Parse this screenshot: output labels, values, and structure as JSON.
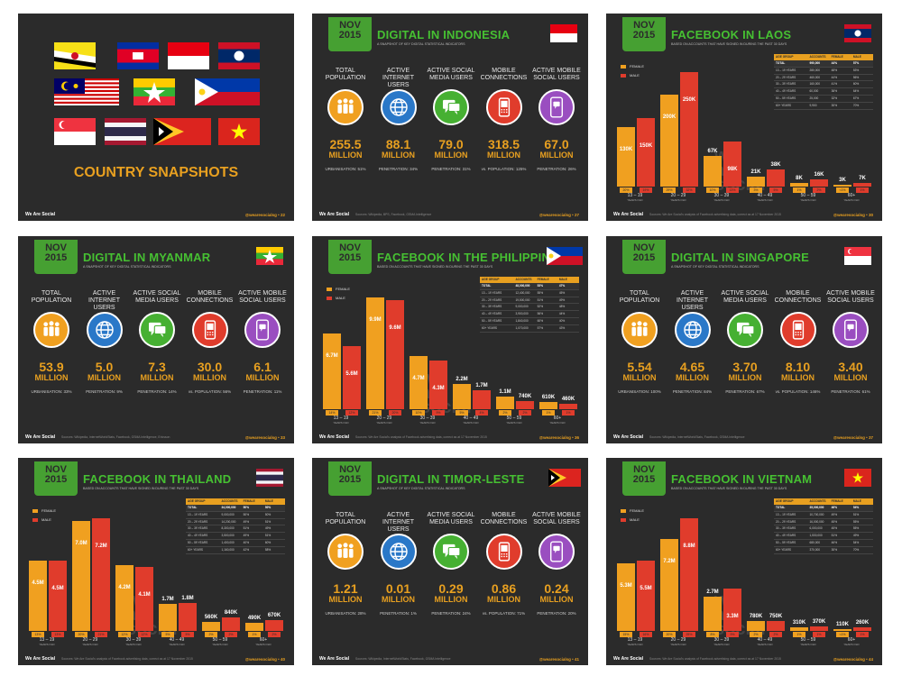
{
  "common": {
    "badge_month": "NOV",
    "badge_year": "2015",
    "footer_left": "We Are Social",
    "footer_right": "@wearesocialsg",
    "digital_subtitle": "A SNAPSHOT OF KEY DIGITAL STATISTICAL INDICATORS",
    "fb_subtitle": "BASED ON ACCOUNTS THAT HAVE SIGNED IN DURING THE PAST 30 DAYS",
    "labels": {
      "total_population": "TOTAL POPULATION",
      "active_internet": "ACTIVE INTERNET USERS",
      "active_social": "ACTIVE SOCIAL MEDIA USERS",
      "mobile_connections": "MOBILE CONNECTIONS",
      "active_mobile_social": "ACTIVE MOBILE SOCIAL USERS"
    },
    "unit": "MILLION",
    "legend_female": "FEMALE",
    "legend_male": "MALE",
    "ages": [
      "13 – 19",
      "20 – 29",
      "30 – 39",
      "40 – 49",
      "50 – 59",
      "60+"
    ],
    "years_old": "YEARS OLD",
    "table_headers": [
      "AGE GROUP",
      "ACCOUNTS",
      "FEMALE",
      "MALE"
    ],
    "watermark": "we are social",
    "colors": {
      "background": "#2b2b2b",
      "badge": "#46a032",
      "accent": "#e8a020",
      "female": "#f0a020",
      "male": "#e03c2c",
      "population": "#f0a020",
      "internet": "#2a78c8",
      "social": "#46b032",
      "mobile": "#e03c2c",
      "mobile_social": "#9a4ec0"
    }
  },
  "cover": {
    "title": "COUNTRY SNAPSHOTS",
    "page": "22",
    "flags": [
      "brunei",
      "cambodia",
      "indonesia",
      "laos",
      "malaysia",
      "myanmar",
      "philippines",
      "singapore",
      "thailand",
      "timor-leste",
      "vietnam"
    ]
  },
  "indonesia": {
    "title": "DIGITAL IN INDONESIA",
    "page": "27",
    "source": "Sources: Wikipedia, BPS, Facebook, GSMA Intelligence",
    "values": [
      "255.5",
      "88.1",
      "79.0",
      "318.5",
      "67.0"
    ],
    "notes": [
      "URBANISATION: 51%",
      "PENETRATION: 34%",
      "PENETRATION: 31%",
      "vs. POPULATION: 125%",
      "PENETRATION: 26%"
    ]
  },
  "laos": {
    "title": "FACEBOOK IN LAOS",
    "page": "30",
    "source": "Sources: We Are Social's analysis of Facebook advertising data, correct as at 17 November 2015",
    "female_labels": [
      "130K",
      "200K",
      "67K",
      "21K",
      "8K",
      "3K"
    ],
    "male_labels": [
      "150K",
      "250K",
      "98K",
      "38K",
      "16K",
      "7K"
    ],
    "female_pct": [
      "20%",
      "29%",
      "10%",
      "3%",
      "1%",
      "<1%"
    ],
    "male_pct": [
      "19%",
      "32%",
      "13%",
      "5%",
      "2%",
      "1%"
    ],
    "table": [
      [
        "TOTAL",
        "990,000",
        "44%",
        "57%"
      ],
      [
        "13 – 19 YEARS",
        "280,000",
        "48%",
        "53%"
      ],
      [
        "20 – 29 YEARS",
        "460,000",
        "44%",
        "56%"
      ],
      [
        "30 – 39 YEARS",
        "160,000",
        "41%",
        "60%"
      ],
      [
        "40 – 49 YEARS",
        "60,000",
        "36%",
        "64%"
      ],
      [
        "50 – 59 YEARS",
        "25,000",
        "32%",
        "67%"
      ],
      [
        "60+ YEARS",
        "9,900",
        "30%",
        "70%"
      ]
    ],
    "chart_data": {
      "type": "bar",
      "categories": [
        "13 – 19",
        "20 – 29",
        "30 – 39",
        "40 – 49",
        "50 – 59",
        "60+"
      ],
      "series": [
        {
          "name": "FEMALE",
          "values": [
            130,
            200,
            67,
            21,
            8,
            3
          ]
        },
        {
          "name": "MALE",
          "values": [
            150,
            250,
            98,
            38,
            16,
            7
          ]
        }
      ],
      "ylim": [
        0,
        260
      ]
    }
  },
  "myanmar": {
    "title": "DIGITAL IN MYANMAR",
    "page": "33",
    "source": "Sources: Wikipedia, InternetWorldStats, Facebook, GSMA Intelligence, Ericsson",
    "values": [
      "53.9",
      "5.0",
      "7.3",
      "30.0",
      "6.1"
    ],
    "notes": [
      "URBANISATION: 33%",
      "PENETRATION: 9%",
      "PENETRATION: 14%",
      "vs. POPULATION: 56%",
      "PENETRATION: 11%"
    ]
  },
  "philippines": {
    "title": "FACEBOOK IN THE PHILIPPINES",
    "page": "36",
    "source": "Sources: We Are Social's analysis of Facebook advertising data, correct as at 17 November 2015",
    "female_labels": [
      "6.7M",
      "9.9M",
      "4.7M",
      "2.2M",
      "1.1M",
      "610K"
    ],
    "male_labels": [
      "5.6M",
      "9.6M",
      "4.3M",
      "1.7M",
      "740K",
      "460K"
    ],
    "female_pct": [
      "14%",
      "21%",
      "10%",
      "5%",
      "2%",
      "1%"
    ],
    "male_pct": [
      "12%",
      "20%",
      "9%",
      "4%",
      "2%",
      "1%"
    ],
    "table": [
      [
        "TOTAL",
        "48,000,000",
        "53%",
        "47%"
      ],
      [
        "13 – 19 YEARS",
        "12,400,000",
        "55%",
        "45%"
      ],
      [
        "20 – 29 YEARS",
        "19,500,000",
        "51%",
        "49%"
      ],
      [
        "30 – 39 YEARS",
        "9,000,000",
        "52%",
        "48%"
      ],
      [
        "40 – 49 YEARS",
        "3,900,000",
        "56%",
        "44%"
      ],
      [
        "50 – 59 YEARS",
        "1,840,000",
        "60%",
        "40%"
      ],
      [
        "60+ YEARS",
        "1,070,000",
        "57%",
        "43%"
      ]
    ],
    "chart_data": {
      "type": "bar",
      "categories": [
        "13 – 19",
        "20 – 29",
        "30 – 39",
        "40 – 49",
        "50 – 59",
        "60+"
      ],
      "series": [
        {
          "name": "FEMALE",
          "values": [
            6.7,
            9.9,
            4.7,
            2.2,
            1.1,
            0.61
          ]
        },
        {
          "name": "MALE",
          "values": [
            5.6,
            9.6,
            4.3,
            1.7,
            0.74,
            0.46
          ]
        }
      ],
      "ylim": [
        0,
        10.5
      ]
    }
  },
  "singapore": {
    "title": "DIGITAL IN SINGAPORE",
    "page": "37",
    "source": "Sources: Wikipedia, InternetWorldStats, Facebook, GSMA Intelligence",
    "values": [
      "5.54",
      "4.65",
      "3.70",
      "8.10",
      "3.40"
    ],
    "notes": [
      "URBANISATION: 100%",
      "PENETRATION: 84%",
      "PENETRATION: 67%",
      "vs. POPULATION: 146%",
      "PENETRATION: 61%"
    ]
  },
  "thailand": {
    "title": "FACEBOOK IN THAILAND",
    "page": "40",
    "source": "Sources: We Are Social's analysis of Facebook advertising data, correct as at 17 November 2015",
    "female_labels": [
      "4.5M",
      "7.0M",
      "4.2M",
      "1.7M",
      "560K",
      "490K"
    ],
    "male_labels": [
      "4.5M",
      "7.2M",
      "4.1M",
      "1.8M",
      "840K",
      "670K"
    ],
    "female_pct": [
      "13%",
      "20%",
      "12%",
      "5%",
      "2%",
      "1%"
    ],
    "male_pct": [
      "13%",
      "21%",
      "12%",
      "5%",
      "2%",
      "2%"
    ],
    "table": [
      [
        "TOTAL",
        "34,000,000",
        "50%",
        "50%"
      ],
      [
        "13 – 19 YEARS",
        "9,000,000",
        "50%",
        "50%"
      ],
      [
        "20 – 29 YEARS",
        "14,200,000",
        "49%",
        "51%"
      ],
      [
        "30 – 39 YEARS",
        "8,300,000",
        "51%",
        "49%"
      ],
      [
        "40 – 49 YEARS",
        "3,500,000",
        "49%",
        "51%"
      ],
      [
        "50 – 59 YEARS",
        "1,400,000",
        "40%",
        "60%"
      ],
      [
        "60+ YEARS",
        "1,160,000",
        "42%",
        "58%"
      ]
    ],
    "chart_data": {
      "type": "bar",
      "categories": [
        "13 – 19",
        "20 – 29",
        "30 – 39",
        "40 – 49",
        "50 – 59",
        "60+"
      ],
      "series": [
        {
          "name": "FEMALE",
          "values": [
            4.5,
            7.0,
            4.2,
            1.7,
            0.56,
            0.49
          ]
        },
        {
          "name": "MALE",
          "values": [
            4.5,
            7.2,
            4.1,
            1.8,
            0.84,
            0.67
          ]
        }
      ],
      "ylim": [
        0,
        7.6
      ]
    }
  },
  "timor": {
    "title": "DIGITAL IN TIMOR-LESTE",
    "page": "41",
    "source": "Sources: Wikipedia, InternetWorldStats, Facebook, GSMA Intelligence",
    "values": [
      "1.21",
      "0.01",
      "0.29",
      "0.86",
      "0.24"
    ],
    "notes": [
      "URBANISATION: 28%",
      "PENETRATION: 1%",
      "PENETRATION: 24%",
      "vs. POPULATION: 71%",
      "PENETRATION: 20%"
    ]
  },
  "vietnam": {
    "title": "FACEBOOK IN VIETNAM",
    "page": "44",
    "source": "Sources: We Are Social's analysis of Facebook advertising data, correct as at 17 November 2015",
    "female_labels": [
      "5.3M",
      "7.2M",
      "2.7M",
      "780K",
      "310K",
      "110K"
    ],
    "male_labels": [
      "5.5M",
      "8.8M",
      "3.3M",
      "750K",
      "370K",
      "260K"
    ],
    "female_pct": [
      "15%",
      "20%",
      "8%",
      "2%",
      "1%",
      "<1%"
    ],
    "male_pct": [
      "16%",
      "25%",
      "9%",
      "2%",
      "1%",
      "1%"
    ],
    "table": [
      [
        "TOTAL",
        "35,000,000",
        "46%",
        "54%"
      ],
      [
        "13 – 19 YEARS",
        "10,700,000",
        "49%",
        "51%"
      ],
      [
        "20 – 29 YEARS",
        "16,000,000",
        "45%",
        "55%"
      ],
      [
        "30 – 39 YEARS",
        "6,000,000",
        "45%",
        "55%"
      ],
      [
        "40 – 49 YEARS",
        "1,530,000",
        "51%",
        "49%"
      ],
      [
        "50 – 59 YEARS",
        "680,000",
        "46%",
        "54%"
      ],
      [
        "60+ YEARS",
        "370,000",
        "30%",
        "70%"
      ]
    ],
    "chart_data": {
      "type": "bar",
      "categories": [
        "13 – 19",
        "20 – 29",
        "30 – 39",
        "40 – 49",
        "50 – 59",
        "60+"
      ],
      "series": [
        {
          "name": "FEMALE",
          "values": [
            5.3,
            7.2,
            2.7,
            0.78,
            0.31,
            0.11
          ]
        },
        {
          "name": "MALE",
          "values": [
            5.5,
            8.8,
            3.3,
            0.75,
            0.37,
            0.26
          ]
        }
      ],
      "ylim": [
        0,
        9.3
      ]
    }
  }
}
